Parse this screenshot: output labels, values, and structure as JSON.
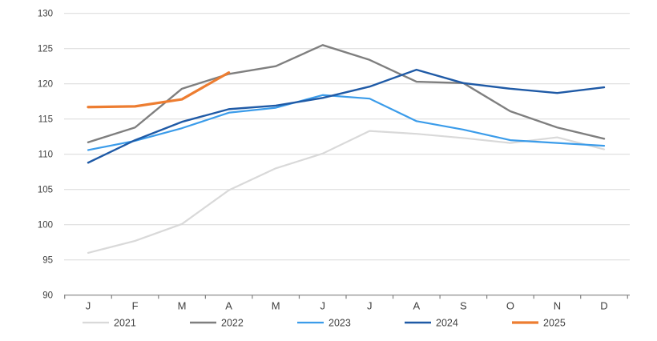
{
  "chart_data": {
    "type": "line",
    "title": "",
    "xlabel": "",
    "ylabel": "",
    "categories": [
      "J",
      "F",
      "M",
      "A",
      "M",
      "J",
      "J",
      "A",
      "S",
      "O",
      "N",
      "D"
    ],
    "ylim": [
      90,
      130
    ],
    "ytick_step": 5,
    "yticks": [
      90,
      95,
      100,
      105,
      110,
      115,
      120,
      125,
      130
    ],
    "grid": "horizontal-only",
    "legend_position": "bottom",
    "colors": {
      "gridline": "#d9d9d9",
      "axis_line": "#808080",
      "tick_label": "#404040",
      "legend_label": "#404040"
    },
    "series": [
      {
        "name": "2021",
        "color": "#d9d9d9",
        "width": 2.2,
        "values": [
          96.0,
          97.7,
          100.1,
          104.9,
          108.0,
          110.1,
          113.3,
          112.9,
          112.3,
          111.6,
          112.4,
          110.7
        ]
      },
      {
        "name": "2022",
        "color": "#7f7f7f",
        "width": 2.4,
        "values": [
          111.7,
          113.8,
          119.3,
          121.4,
          122.5,
          125.5,
          123.4,
          120.3,
          120.1,
          116.1,
          113.8,
          112.2
        ]
      },
      {
        "name": "2023",
        "color": "#3b9cea",
        "width": 2.2,
        "values": [
          110.6,
          111.9,
          113.7,
          115.9,
          116.6,
          118.4,
          117.9,
          114.7,
          113.5,
          112.0,
          111.6,
          111.2
        ]
      },
      {
        "name": "2024",
        "color": "#1f5aa6",
        "width": 2.4,
        "values": [
          108.8,
          112.0,
          114.6,
          116.4,
          116.9,
          118.0,
          119.6,
          122.0,
          120.1,
          119.3,
          118.7,
          119.5
        ]
      },
      {
        "name": "2025",
        "color": "#ed7d31",
        "width": 3.2,
        "values": [
          116.7,
          116.8,
          117.8,
          121.6
        ]
      }
    ]
  }
}
